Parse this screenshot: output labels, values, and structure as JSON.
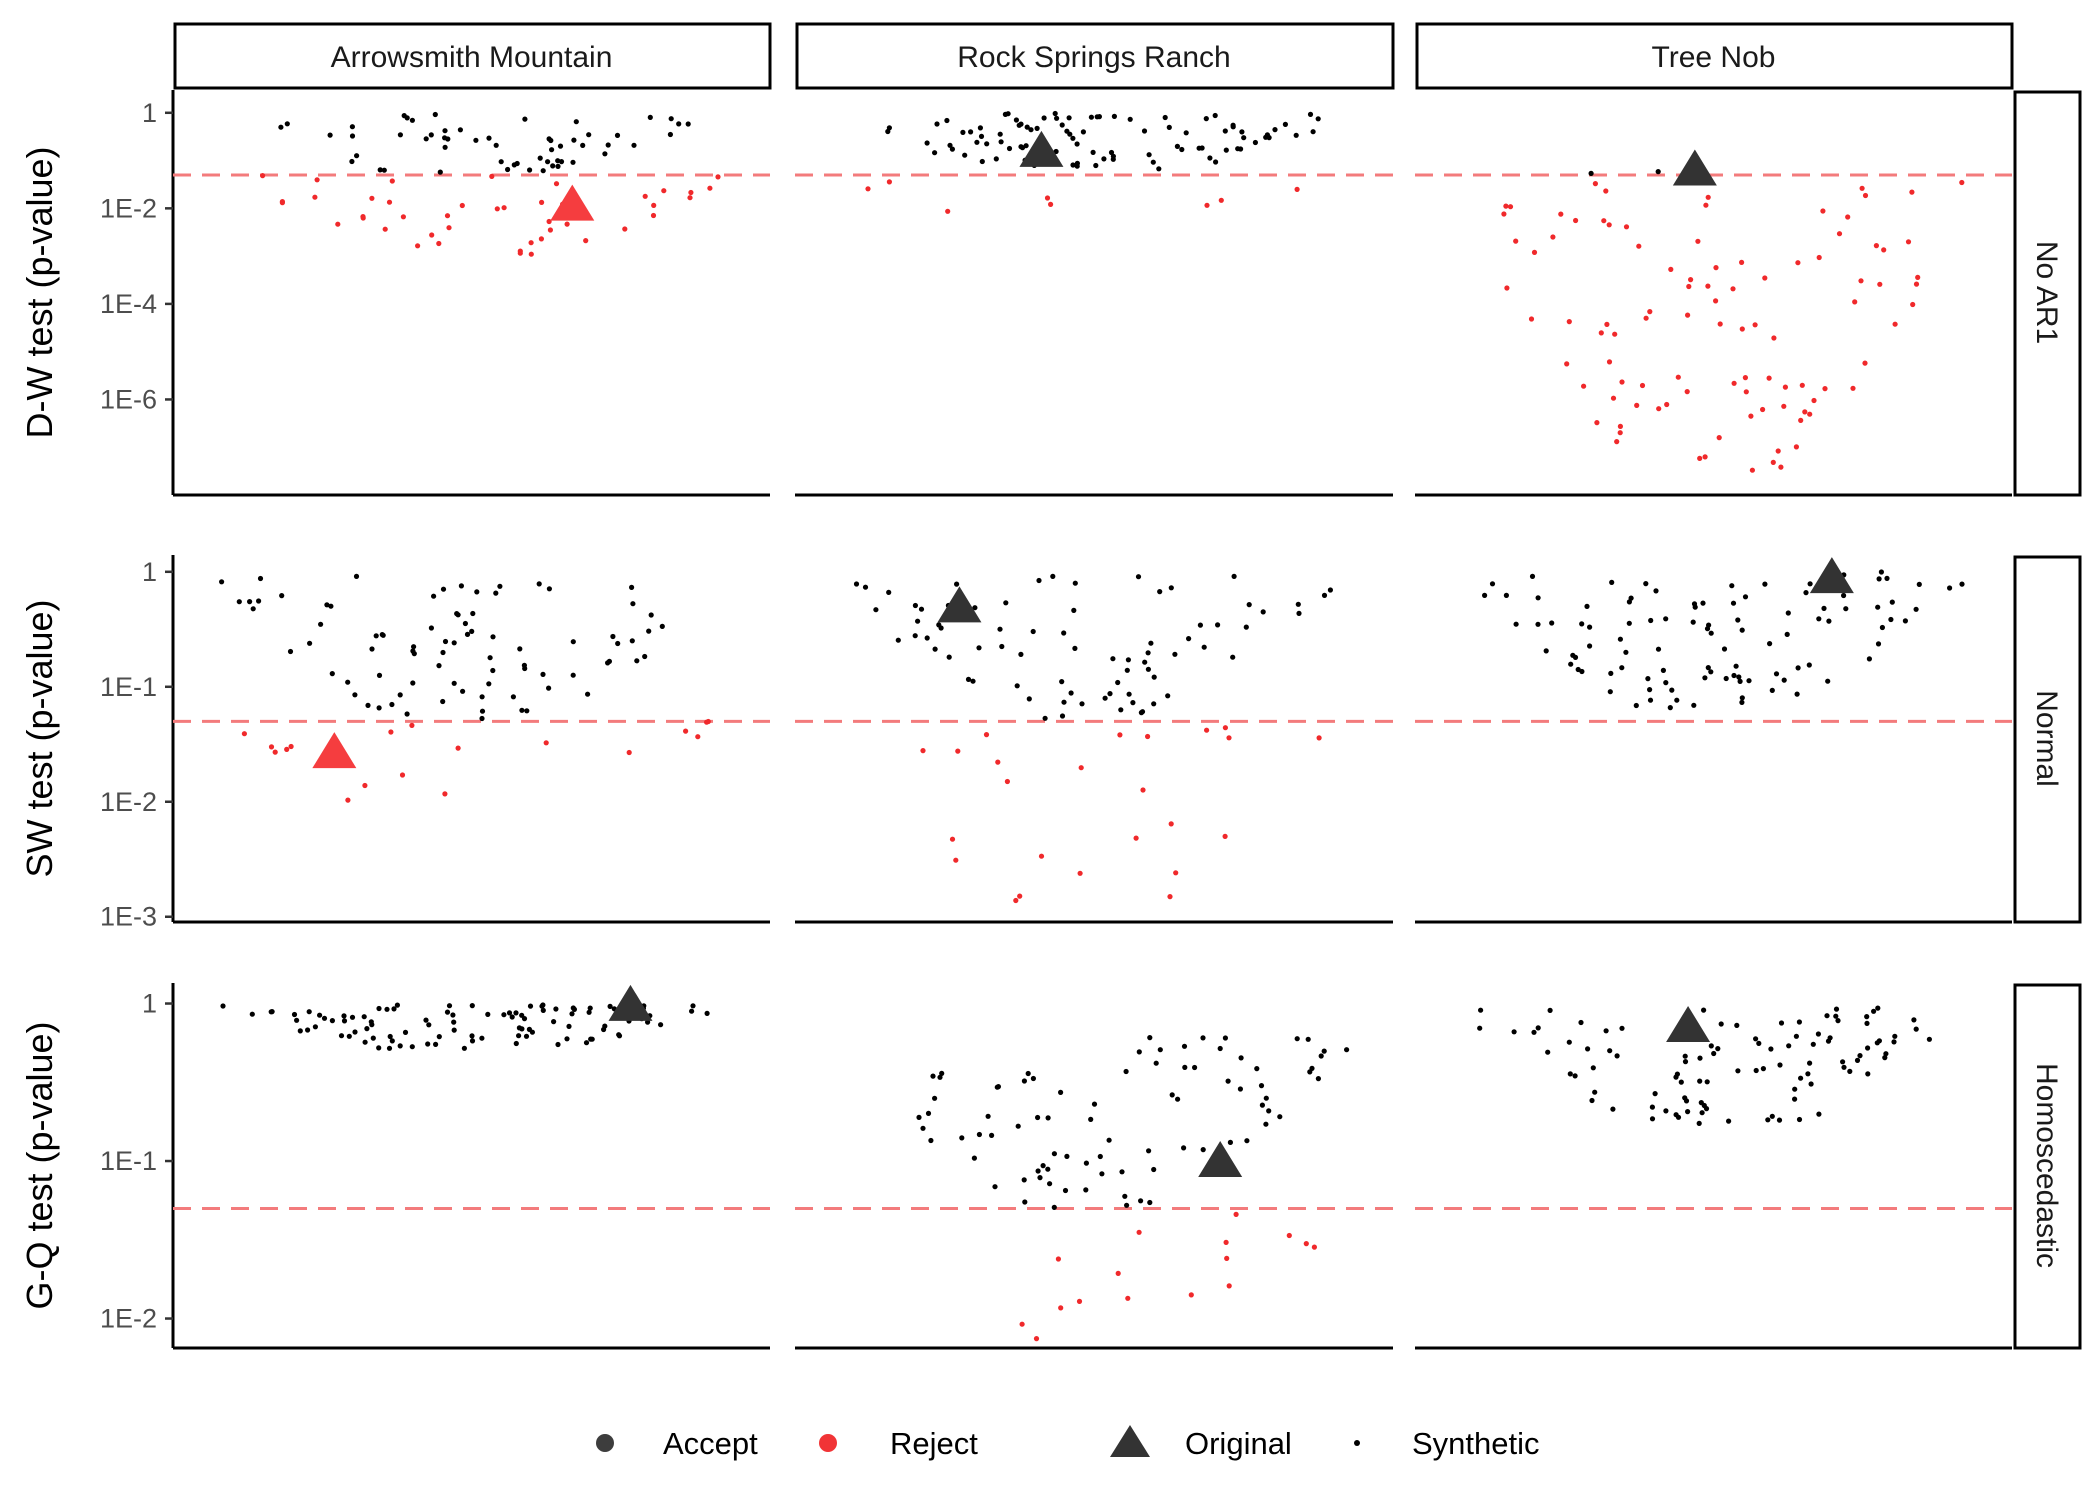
{
  "colors": {
    "accept": "#000000",
    "reject": "#f0292b",
    "threshold": "#f37b7c",
    "original_accept": "#333333",
    "original_reject": "#f53d3f"
  },
  "chart_data": {
    "type": "scatter",
    "subtype": "beeswarm",
    "columns": [
      "Arrowsmith Mountain",
      "Rock Springs Ranch",
      "Tree Nob"
    ],
    "rows": [
      {
        "key": "dw",
        "strip": "No AR1",
        "ylabel": "D-W test (p-value)",
        "scale": "log10",
        "ylim": [
          1e-08,
          3
        ],
        "ticks": [
          1,
          0.01,
          0.0001,
          1e-06
        ],
        "tick_labels": [
          "1",
          "1E-2",
          "1E-4",
          "1E-6"
        ],
        "threshold": 0.05,
        "panels": [
          {
            "n_accept": 56,
            "accept_range": [
              0.05,
              0.95
            ],
            "n_reject": 44,
            "reject_range": [
              0.0009,
              0.05
            ],
            "original": {
              "value": 0.012,
              "status": "Reject"
            }
          },
          {
            "n_accept": 92,
            "accept_range": [
              0.05,
              0.98
            ],
            "n_reject": 8,
            "reject_range": [
              0.002,
              0.05
            ],
            "original": {
              "value": 0.16,
              "status": "Accept"
            }
          },
          {
            "n_accept": 3,
            "accept_range": [
              0.05,
              0.065
            ],
            "n_reject": 97,
            "reject_range": [
              3e-08,
              0.035
            ],
            "original": {
              "value": 0.065,
              "status": "Accept"
            }
          }
        ]
      },
      {
        "key": "sw",
        "strip": "Normal",
        "ylabel": "SW test (p-value)",
        "scale": "log10",
        "ylim": [
          0.0009,
          1.4
        ],
        "ticks": [
          1,
          0.1,
          0.01,
          0.001
        ],
        "tick_labels": [
          "1",
          "1E-1",
          "1E-2",
          "1E-3"
        ],
        "threshold": 0.05,
        "panels": [
          {
            "n_accept": 82,
            "accept_range": [
              0.05,
              0.96
            ],
            "n_reject": 18,
            "reject_range": [
              0.007,
              0.05
            ],
            "original": {
              "value": 0.027,
              "status": "Reject"
            }
          },
          {
            "n_accept": 76,
            "accept_range": [
              0.05,
              0.96
            ],
            "n_reject": 24,
            "reject_range": [
              0.0012,
              0.05
            ],
            "original": {
              "value": 0.5,
              "status": "Accept"
            }
          },
          {
            "n_accept": 100,
            "accept_range": [
              0.065,
              1.0
            ],
            "n_reject": 0,
            "reject_range": [
              0.05,
              0.05
            ],
            "original": {
              "value": 0.9,
              "status": "Accept"
            }
          }
        ]
      },
      {
        "key": "gq",
        "strip": "Homoscedastic",
        "ylabel": "G-Q test (p-value)",
        "scale": "log10",
        "ylim": [
          0.0065,
          1.35
        ],
        "ticks": [
          1,
          0.1,
          0.01
        ],
        "tick_labels": [
          "1",
          "1E-1",
          "1E-2"
        ],
        "threshold": 0.05,
        "panels": [
          {
            "n_accept": 100,
            "accept_range": [
              0.5,
              1.0
            ],
            "n_reject": 0,
            "reject_range": [
              0.05,
              0.05
            ],
            "original": {
              "value": 0.98,
              "status": "Accept"
            }
          },
          {
            "n_accept": 84,
            "accept_range": [
              0.05,
              0.62
            ],
            "n_reject": 16,
            "reject_range": [
              0.007,
              0.05
            ],
            "original": {
              "value": 0.1,
              "status": "Accept"
            }
          },
          {
            "n_accept": 100,
            "accept_range": [
              0.16,
              0.95
            ],
            "n_reject": 0,
            "reject_range": [
              0.05,
              0.05
            ],
            "original": {
              "value": 0.72,
              "status": "Accept"
            }
          }
        ]
      }
    ],
    "legend": [
      {
        "label": "Accept",
        "shape": "dot",
        "color": "#333333"
      },
      {
        "label": "Reject",
        "shape": "dot",
        "color": "#f0292b"
      },
      {
        "label": "Original",
        "shape": "triangle",
        "color": "#333333"
      },
      {
        "label": "Synthetic",
        "shape": "small-dot",
        "color": "#000000"
      }
    ],
    "legend_position": "bottom",
    "grid": false
  }
}
